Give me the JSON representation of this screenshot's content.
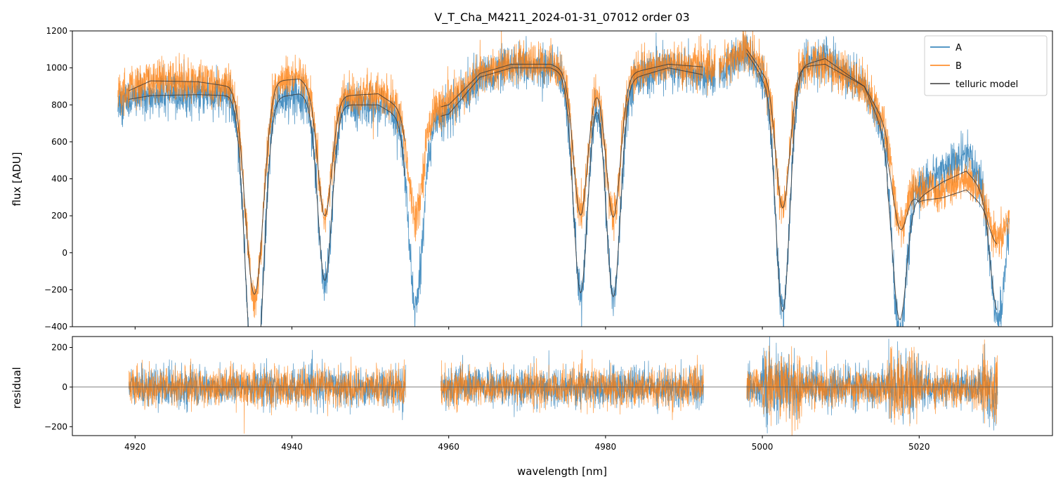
{
  "chart_data": {
    "type": "line",
    "title": "V_T_Cha_M4211_2024-01-31_07012  order 03",
    "xlabel": "wavelength [nm]",
    "xlim": [
      4912,
      5037
    ],
    "x_ticks": [
      4920,
      4940,
      4960,
      4980,
      5000,
      5020
    ],
    "x_tick_labels": [
      "4920",
      "4940",
      "4960",
      "4980",
      "5000",
      "5020"
    ],
    "top_panel": {
      "ylabel": "flux [ADU]",
      "ylim": [
        -400,
        1200
      ],
      "y_ticks": [
        -400,
        -200,
        0,
        200,
        400,
        600,
        800,
        1000,
        1200
      ],
      "y_tick_labels": [
        "−400",
        "−200",
        "0",
        "200",
        "400",
        "600",
        "800",
        "1000",
        "1200"
      ]
    },
    "bottom_panel": {
      "ylabel": "residual",
      "ylim": [
        -245,
        255
      ],
      "y_ticks": [
        -200,
        0,
        200
      ],
      "y_tick_labels": [
        "−200",
        "0",
        "200"
      ],
      "zero_line": true
    },
    "legend": {
      "placement": "top-right",
      "entries": [
        {
          "label": "A",
          "color": "#1f77b4"
        },
        {
          "label": "B",
          "color": "#ff7f0e"
        },
        {
          "label": "telluric model",
          "color": "#3a3a3a"
        }
      ]
    },
    "series": [
      {
        "name": "A",
        "color": "#1f77b4",
        "segments": [
          {
            "x_start": 4917.8,
            "x_end": 4994.0
          },
          {
            "x_start": 4994.5,
            "x_end": 5031.5
          }
        ],
        "continuum": [
          [
            4917.8,
            820
          ],
          [
            4922,
            850
          ],
          [
            4928,
            855
          ],
          [
            4932,
            850
          ],
          [
            4934,
            800
          ],
          [
            4938,
            840
          ],
          [
            4941,
            860
          ],
          [
            4944,
            800
          ],
          [
            4947,
            800
          ],
          [
            4951,
            800
          ],
          [
            4955,
            700
          ],
          [
            4960,
            750
          ],
          [
            4964,
            950
          ],
          [
            4968,
            1000
          ],
          [
            4973,
            1000
          ],
          [
            4977,
            930
          ],
          [
            4980,
            900
          ],
          [
            4984,
            950
          ],
          [
            4988,
            1000
          ],
          [
            4994,
            950
          ],
          [
            4998,
            1080
          ],
          [
            5000,
            950
          ],
          [
            5004,
            1000
          ],
          [
            5008,
            1050
          ],
          [
            5013,
            900
          ],
          [
            5017,
            500
          ],
          [
            5020,
            350
          ],
          [
            5023,
            450
          ],
          [
            5026,
            520
          ],
          [
            5029,
            350
          ],
          [
            5031.5,
            300
          ]
        ],
        "absorption_bands": [
          {
            "center": 4934.7,
            "depth": 950
          },
          {
            "center": 4935.8,
            "depth": 950
          },
          {
            "center": 4944.2,
            "depth": 950
          },
          {
            "center": 4955.8,
            "depth": 1000
          },
          {
            "center": 4976.8,
            "depth": 1150
          },
          {
            "center": 4981,
            "depth": 1150
          },
          {
            "center": 5002.6,
            "depth": 1300
          },
          {
            "center": 5017.5,
            "depth": 900
          },
          {
            "center": 5030,
            "depth": 700
          }
        ],
        "noise_amplitude": 55
      },
      {
        "name": "B",
        "color": "#ff7f0e",
        "segments": [
          {
            "x_start": 4917.8,
            "x_end": 4994.0
          },
          {
            "x_start": 4994.5,
            "x_end": 5031.5
          }
        ],
        "continuum": [
          [
            4917.8,
            850
          ],
          [
            4922,
            930
          ],
          [
            4928,
            925
          ],
          [
            4932,
            900
          ],
          [
            4934,
            820
          ],
          [
            4938,
            930
          ],
          [
            4941,
            940
          ],
          [
            4944,
            850
          ],
          [
            4947,
            850
          ],
          [
            4951,
            860
          ],
          [
            4955,
            750
          ],
          [
            4960,
            800
          ],
          [
            4964,
            970
          ],
          [
            4968,
            1020
          ],
          [
            4973,
            1020
          ],
          [
            4977,
            950
          ],
          [
            4980,
            930
          ],
          [
            4984,
            980
          ],
          [
            4988,
            1020
          ],
          [
            4994,
            1000
          ],
          [
            4998,
            1100
          ],
          [
            5000,
            980
          ],
          [
            5004,
            1000
          ],
          [
            5008,
            1020
          ],
          [
            5013,
            900
          ],
          [
            5017,
            600
          ],
          [
            5020,
            330
          ],
          [
            5023,
            350
          ],
          [
            5026,
            400
          ],
          [
            5029,
            260
          ],
          [
            5031.5,
            250
          ]
        ],
        "absorption_bands": [
          {
            "center": 4934.7,
            "depth": 650
          },
          {
            "center": 4935.8,
            "depth": 650
          },
          {
            "center": 4944.2,
            "depth": 650
          },
          {
            "center": 4955.8,
            "depth": 550
          },
          {
            "center": 4976.8,
            "depth": 750
          },
          {
            "center": 4981,
            "depth": 750
          },
          {
            "center": 5002.6,
            "depth": 750
          },
          {
            "center": 5017.5,
            "depth": 400
          },
          {
            "center": 5030,
            "depth": 200
          }
        ],
        "noise_amplitude": 55
      },
      {
        "name": "telluric model",
        "color": "#3a3a3a",
        "comment": "model curves overlaid on A and B",
        "segments": [
          {
            "x_start": 4919.2,
            "x_end": 4954.5
          },
          {
            "x_start": 4959,
            "x_end": 4992.5
          },
          {
            "x_start": 4998,
            "x_end": 5030
          }
        ]
      }
    ],
    "residuals": [
      {
        "name": "A",
        "color": "#1f77b4",
        "segments": [
          [
            4919.2,
            4954.5
          ],
          [
            4959,
            4992.5
          ],
          [
            4998,
            5030
          ]
        ],
        "amplitude": 70
      },
      {
        "name": "B",
        "color": "#ff7f0e",
        "segments": [
          [
            4919.2,
            4954.5
          ],
          [
            4959,
            4992.5
          ],
          [
            4998,
            5030
          ]
        ],
        "amplitude": 70
      }
    ]
  }
}
